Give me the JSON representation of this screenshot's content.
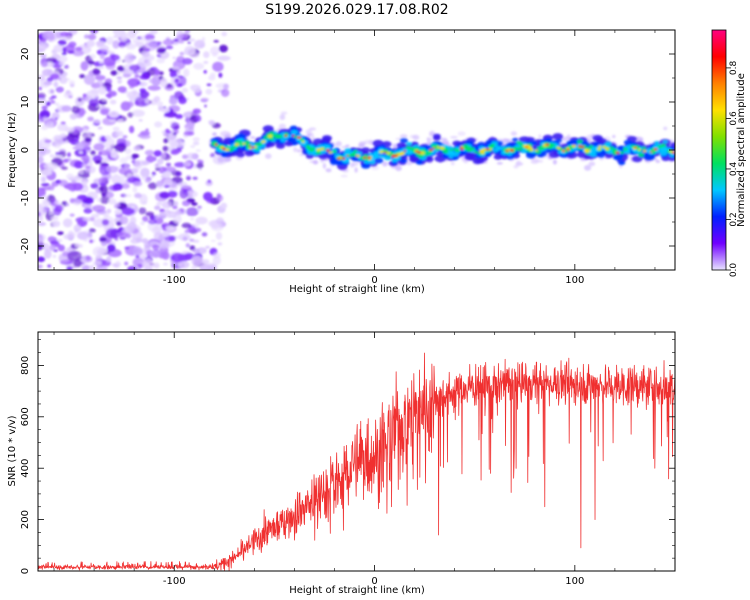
{
  "title": "S199.2026.029.17.08.R02",
  "colors": {
    "axis": "#000000",
    "snr_line": "#f03030",
    "signal_core": "#ff2020",
    "noise_purple": "#8a2be2"
  },
  "chart_data": [
    {
      "type": "heatmap",
      "name": "spectrogram",
      "xlabel": "Height of straight line (km)",
      "ylabel": "Frequency (Hz)",
      "xlim": [
        -168,
        150
      ],
      "ylim": [
        -25,
        25
      ],
      "xticks": [
        -100,
        0,
        100
      ],
      "yticks": [
        -20,
        -10,
        0,
        10,
        20
      ],
      "noise_region_x": [
        -168,
        -80
      ],
      "signal_band": [
        {
          "x": -80,
          "f": 0.5
        },
        {
          "x": -60,
          "f": 1.0
        },
        {
          "x": -45,
          "f": 3.5
        },
        {
          "x": -30,
          "f": 0.5
        },
        {
          "x": -15,
          "f": -1.5
        },
        {
          "x": 0,
          "f": -1.0
        },
        {
          "x": 15,
          "f": -0.5
        },
        {
          "x": 30,
          "f": 0.0
        },
        {
          "x": 50,
          "f": 0.0
        },
        {
          "x": 80,
          "f": 0.5
        },
        {
          "x": 100,
          "f": 0.5
        },
        {
          "x": 120,
          "f": 0.0
        },
        {
          "x": 150,
          "f": 0.0
        }
      ],
      "colorbar": {
        "label": "Normalized spectral amplitude",
        "range": [
          0.0,
          0.95
        ],
        "ticks": [
          "0.0",
          "0.2",
          "0.4",
          "0.6",
          "0.8"
        ],
        "tick_values": [
          0.0,
          0.2,
          0.4,
          0.6,
          0.8
        ],
        "stops": [
          "#e8e4ff",
          "#7000ff",
          "#0020ff",
          "#00c8ff",
          "#00e060",
          "#80e000",
          "#ffe000",
          "#ff8000",
          "#ff0000",
          "#ff0080"
        ]
      }
    },
    {
      "type": "line",
      "name": "snr",
      "xlabel": "Height of straight line (km)",
      "ylabel": "SNR (10 * v/v)",
      "xlim": [
        -168,
        150
      ],
      "ylim": [
        0,
        930
      ],
      "xticks": [
        -100,
        0,
        100
      ],
      "yticks": [
        0,
        200,
        400,
        600,
        800
      ],
      "trend": [
        {
          "x": -168,
          "y": 15
        },
        {
          "x": -80,
          "y": 15
        },
        {
          "x": -70,
          "y": 50
        },
        {
          "x": -60,
          "y": 120
        },
        {
          "x": -50,
          "y": 170
        },
        {
          "x": -40,
          "y": 220
        },
        {
          "x": -30,
          "y": 280
        },
        {
          "x": -20,
          "y": 350
        },
        {
          "x": -10,
          "y": 420
        },
        {
          "x": 0,
          "y": 460
        },
        {
          "x": 10,
          "y": 540
        },
        {
          "x": 20,
          "y": 620
        },
        {
          "x": 30,
          "y": 680
        },
        {
          "x": 50,
          "y": 720
        },
        {
          "x": 75,
          "y": 740
        },
        {
          "x": 100,
          "y": 730
        },
        {
          "x": 125,
          "y": 720
        },
        {
          "x": 150,
          "y": 715
        }
      ],
      "dips": [
        {
          "x": 32,
          "y": 140
        },
        {
          "x": 58,
          "y": 380
        },
        {
          "x": 85,
          "y": 250
        },
        {
          "x": 103,
          "y": 90
        },
        {
          "x": 110,
          "y": 200
        },
        {
          "x": 140,
          "y": 400
        }
      ]
    }
  ]
}
